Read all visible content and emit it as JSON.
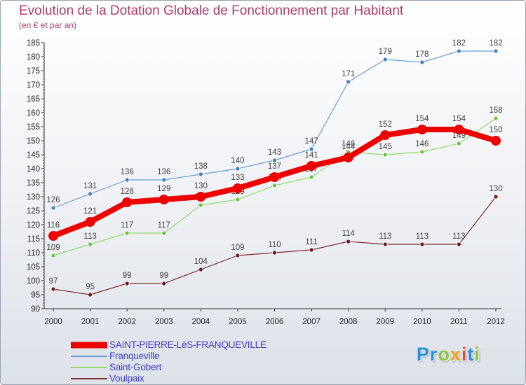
{
  "title": "Evolution de la Dotation Globale de Fonctionnement par Habitant",
  "subtitle": "(en € et par an)",
  "logo": {
    "text": "Proxiti",
    "letters": [
      {
        "char": "P",
        "color": "#2b8fd6"
      },
      {
        "char": "r",
        "color": "#2b8fd6"
      },
      {
        "char": "o",
        "color": "#8cc63f"
      },
      {
        "char": "x",
        "color": "#f39c1a"
      },
      {
        "char": "i",
        "color": "#e84a3c"
      },
      {
        "char": "t",
        "color": "#2b8fd6"
      },
      {
        "char": "i",
        "color": "#8cc63f"
      }
    ]
  },
  "chart_data": {
    "type": "line",
    "title": "Evolution de la Dotation Globale de Fonctionnement par Habitant",
    "subtitle": "(en € et par an)",
    "xlabel": "",
    "ylabel": "",
    "x": [
      2000,
      2001,
      2002,
      2003,
      2004,
      2005,
      2006,
      2007,
      2008,
      2009,
      2010,
      2011,
      2012
    ],
    "ylim": [
      90,
      185
    ],
    "yticks": [
      90,
      95,
      100,
      105,
      110,
      115,
      120,
      125,
      130,
      135,
      140,
      145,
      150,
      155,
      160,
      165,
      170,
      175,
      180,
      185
    ],
    "grid": false,
    "legend_position": "bottom-left",
    "series": [
      {
        "name": "Franqueville",
        "color": "#6a9fd4",
        "marker": "#3f7fc0",
        "weight": "thin",
        "values": [
          126,
          131,
          136,
          136,
          138,
          140,
          143,
          147,
          171,
          179,
          178,
          182,
          182
        ]
      },
      {
        "name": "Saint-Gobert",
        "color": "#8fdc6a",
        "marker": "#6cc040",
        "weight": "thin",
        "values": [
          109,
          113,
          117,
          117,
          127,
          129,
          134,
          137,
          146,
          145,
          146,
          149,
          158
        ]
      },
      {
        "name": "Voulpaix",
        "color": "#7a2e2e",
        "marker": "#6b1a1a",
        "weight": "thin",
        "values": [
          97,
          95,
          99,
          99,
          104,
          109,
          110,
          111,
          114,
          113,
          113,
          113,
          130
        ]
      },
      {
        "name": "SAINT-PIERRE-LèS-FRANQUEVILLE",
        "color": "#ee0000",
        "marker": "#ee0000",
        "weight": "thick",
        "values": [
          116,
          121,
          128,
          129,
          130,
          133,
          137,
          141,
          144,
          152,
          154,
          154,
          150
        ]
      }
    ],
    "legend_order": [
      "SAINT-PIERRE-LèS-FRANQUEVILLE",
      "Franqueville",
      "Saint-Gobert",
      "Voulpaix"
    ]
  }
}
